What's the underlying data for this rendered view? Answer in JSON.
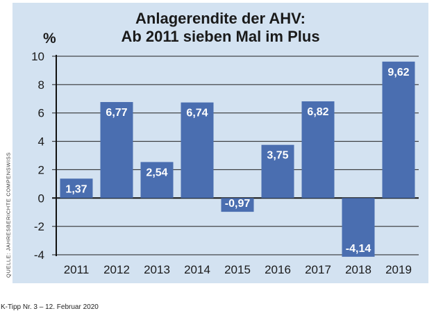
{
  "chart_data": {
    "type": "bar",
    "title_line1": "Anlagerendite der AHV:",
    "title_line2": "Ab 2011 sieben Mal im Plus",
    "ylabel": "%",
    "xlabel": "",
    "categories": [
      "2011",
      "2012",
      "2013",
      "2014",
      "2015",
      "2016",
      "2017",
      "2018",
      "2019"
    ],
    "values": [
      1.37,
      6.77,
      2.54,
      6.74,
      -0.97,
      3.75,
      6.82,
      -4.14,
      9.62
    ],
    "value_labels": [
      "1,37",
      "6,77",
      "2,54",
      "6,74",
      "-0,97",
      "3,75",
      "6,82",
      "-4,14",
      "9,62"
    ],
    "yticks": [
      10,
      8,
      6,
      4,
      2,
      0,
      -2,
      -4
    ],
    "ylim": [
      -4,
      10
    ],
    "grid": true,
    "bar_color": "#4a6eb0",
    "panel_color": "#d3e2f1"
  },
  "source": "QUELLE: JAHRESBERICHTE COMPENSWISS",
  "footer": "K-Tipp Nr. 3 – 12. Februar 2020"
}
